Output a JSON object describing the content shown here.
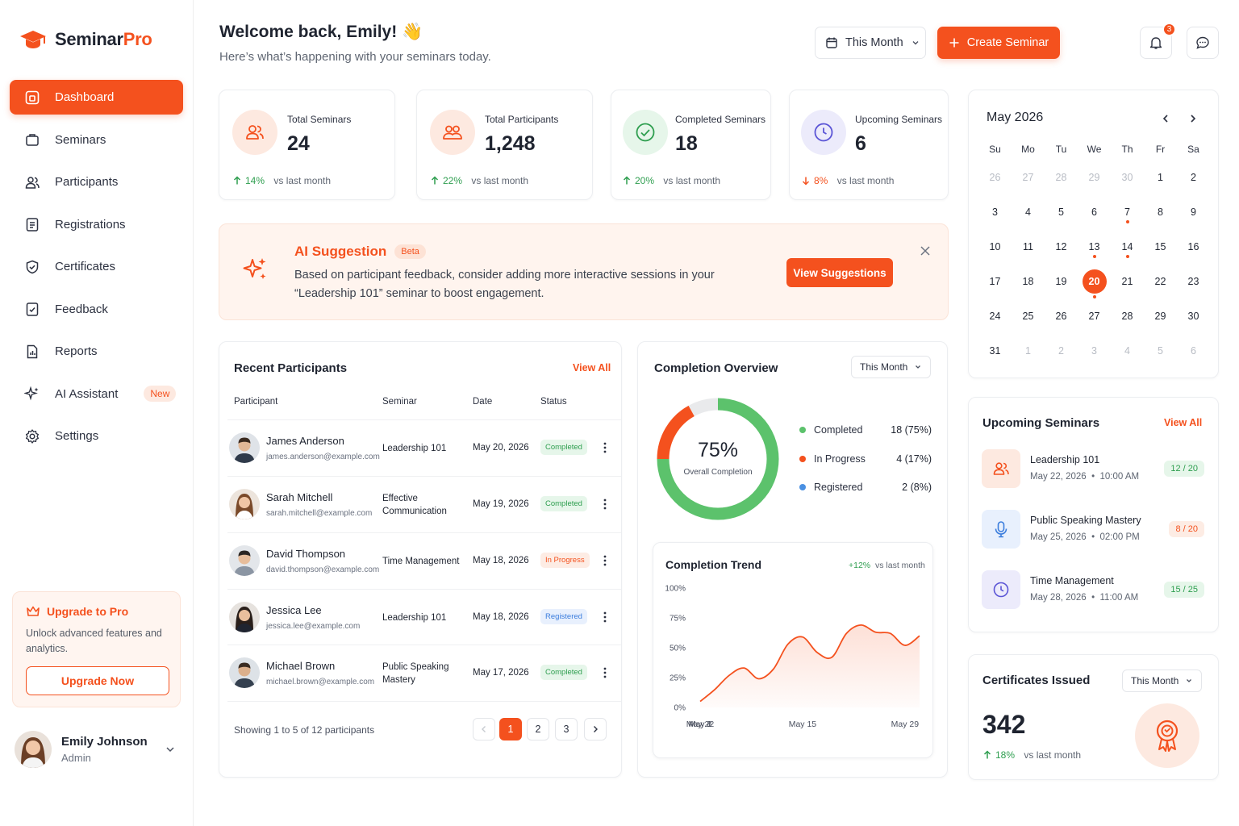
{
  "brand": {
    "name_prefix": "Seminar",
    "name_suffix": "Pro"
  },
  "sidebar": {
    "items": [
      {
        "label": "Dashboard",
        "icon": "dashboard-icon",
        "active": true
      },
      {
        "label": "Seminars",
        "icon": "briefcase-icon"
      },
      {
        "label": "Participants",
        "icon": "users-icon"
      },
      {
        "label": "Registrations",
        "icon": "clipboard-icon"
      },
      {
        "label": "Certificates",
        "icon": "shield-check-icon"
      },
      {
        "label": "Feedback",
        "icon": "feedback-icon"
      },
      {
        "label": "Reports",
        "icon": "report-icon"
      },
      {
        "label": "AI Assistant",
        "icon": "sparkle-icon",
        "badge": "New"
      },
      {
        "label": "Settings",
        "icon": "gear-icon"
      }
    ],
    "upgrade": {
      "title": "Upgrade to Pro",
      "description": "Unlock advanced features and analytics.",
      "button": "Upgrade Now"
    },
    "profile": {
      "name": "Emily Johnson",
      "role": "Admin"
    }
  },
  "header": {
    "title": "Welcome back, Emily! 👋",
    "subtitle": "Here’s what’s happening with your seminars today.",
    "period": "This Month",
    "create_button": "Create Seminar",
    "notification_count": "3"
  },
  "stats": [
    {
      "label": "Total Seminars",
      "value": "24",
      "change": "14%",
      "direction": "up",
      "compare": "vs last month"
    },
    {
      "label": "Total Participants",
      "value": "1,248",
      "change": "22%",
      "direction": "up",
      "compare": "vs last month"
    },
    {
      "label": "Completed Seminars",
      "value": "18",
      "change": "20%",
      "direction": "up",
      "compare": "vs last month"
    },
    {
      "label": "Upcoming Seminars",
      "value": "6",
      "change": "8%",
      "direction": "down",
      "compare": "vs last month"
    }
  ],
  "ai": {
    "title": "AI Suggestion",
    "badge": "Beta",
    "text": "Based on participant feedback, consider adding more interactive sessions in your “Leadership 101” seminar to boost engagement.",
    "button": "View Suggestions"
  },
  "participants": {
    "title": "Recent Participants",
    "view_all": "View All",
    "columns": [
      "Participant",
      "Seminar",
      "Date",
      "Status"
    ],
    "rows": [
      {
        "name": "James Anderson",
        "email": "james.anderson@example.com",
        "seminar": "Leadership 101",
        "date": "May 20, 2026",
        "status": "Completed"
      },
      {
        "name": "Sarah Mitchell",
        "email": "sarah.mitchell@example.com",
        "seminar": "Effective Communication",
        "date": "May 19, 2026",
        "status": "Completed"
      },
      {
        "name": "David Thompson",
        "email": "david.thompson@example.com",
        "seminar": "Time Management",
        "date": "May 18, 2026",
        "status": "In Progress"
      },
      {
        "name": "Jessica Lee",
        "email": "jessica.lee@example.com",
        "seminar": "Leadership 101",
        "date": "May 18, 2026",
        "status": "Registered"
      },
      {
        "name": "Michael Brown",
        "email": "michael.brown@example.com",
        "seminar": "Public Speaking Mastery",
        "date": "May 17, 2026",
        "status": "Completed"
      }
    ],
    "footer": "Showing 1 to 5 of 12 participants",
    "pages": [
      "1",
      "2",
      "3"
    ],
    "current_page": "1"
  },
  "completion": {
    "title": "Completion Overview",
    "period": "This Month",
    "percent_label": "75%",
    "center_caption": "Overall Completion",
    "legend": [
      {
        "label": "Completed",
        "value": "18 (75%)",
        "color": "#5cc26c"
      },
      {
        "label": "In Progress",
        "value": "4 (17%)",
        "color": "#f4511e"
      },
      {
        "label": "Registered",
        "value": "2 (8%)",
        "color": "#4a90e2"
      }
    ],
    "donut_fractions": [
      0.75,
      0.17,
      0.08
    ]
  },
  "trend": {
    "title": "Completion Trend",
    "change": "+12%",
    "compare": "vs last month",
    "chart_data": {
      "type": "area",
      "x": [
        "May 1",
        "May 3",
        "May 5",
        "May 7",
        "May 9",
        "May 11",
        "May 13",
        "May 15",
        "May 17",
        "May 19",
        "May 21",
        "May 23",
        "May 25",
        "May 27",
        "May 29",
        "May 31"
      ],
      "values": [
        5,
        15,
        27,
        33,
        24,
        32,
        53,
        59,
        46,
        42,
        62,
        69,
        63,
        62,
        52,
        60
      ],
      "xticks": [
        "May 1",
        "May 8",
        "May 15",
        "May 22",
        "May 29"
      ],
      "yticks": [
        "0%",
        "25%",
        "50%",
        "75%",
        "100%"
      ],
      "ylim": [
        0,
        100
      ],
      "color": "#f4511e"
    }
  },
  "calendar": {
    "title": "May 2026",
    "weekdays": [
      "Su",
      "Mo",
      "Tu",
      "We",
      "Th",
      "Fr",
      "Sa"
    ],
    "weeks": [
      [
        "26",
        "27",
        "28",
        "29",
        "30",
        "1",
        "2"
      ],
      [
        "3",
        "4",
        "5",
        "6",
        "7",
        "8",
        "9"
      ],
      [
        "10",
        "11",
        "12",
        "13",
        "14",
        "15",
        "16"
      ],
      [
        "17",
        "18",
        "19",
        "20",
        "21",
        "22",
        "23"
      ],
      [
        "24",
        "25",
        "26",
        "27",
        "28",
        "29",
        "30"
      ],
      [
        "31",
        "1",
        "2",
        "3",
        "4",
        "5",
        "6"
      ]
    ],
    "today": "20",
    "event_days": [
      "7",
      "13",
      "14",
      "20"
    ]
  },
  "upcoming": {
    "title": "Upcoming Seminars",
    "view_all": "View All",
    "items": [
      {
        "name": "Leadership 101",
        "date": "May 22, 2026",
        "time": "10:00 AM",
        "seats": "12 / 20",
        "icon": "users-icon",
        "tone": "green"
      },
      {
        "name": "Public Speaking Mastery",
        "date": "May 25, 2026",
        "time": "02:00 PM",
        "seats": "8 / 20",
        "icon": "microphone-icon",
        "tone": "orange"
      },
      {
        "name": "Time Management",
        "date": "May 28, 2026",
        "time": "11:00 AM",
        "seats": "15 / 25",
        "icon": "clock-icon",
        "tone": "green"
      }
    ]
  },
  "certificates": {
    "title": "Certificates Issued",
    "period": "This Month",
    "value": "342",
    "change": "18%",
    "compare": "vs last month"
  },
  "colors": {
    "accent": "#f4511e",
    "success": "#2e9e4f",
    "info": "#3b7ddd"
  }
}
